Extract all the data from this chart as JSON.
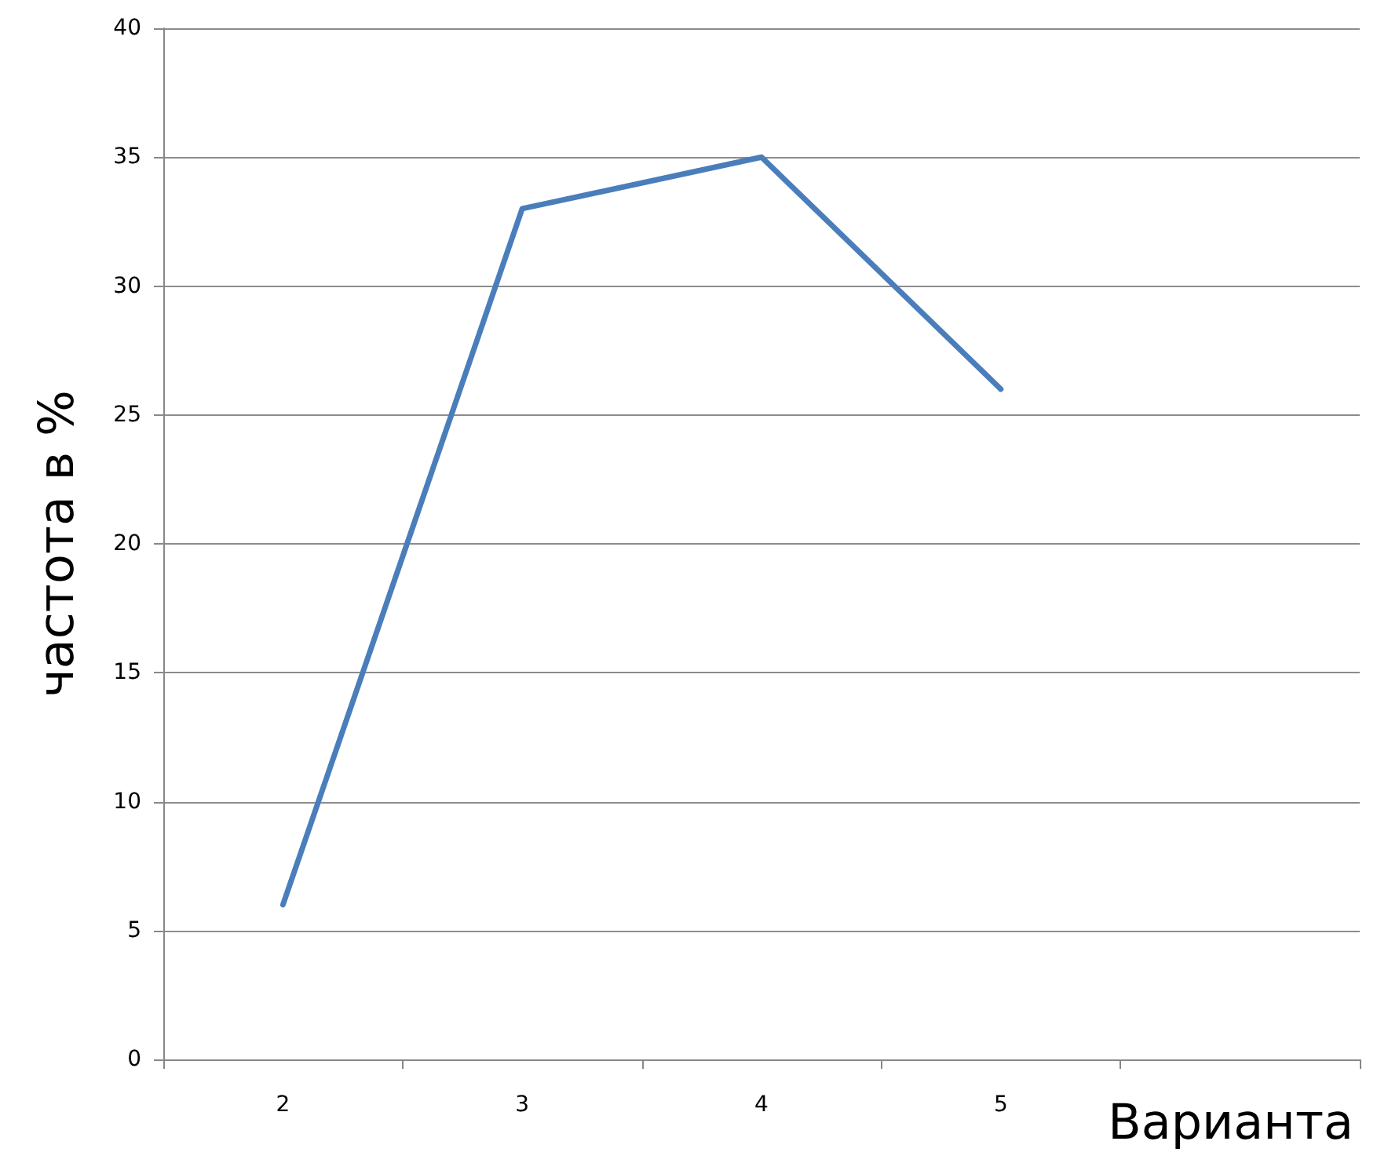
{
  "chart_data": {
    "type": "line",
    "ylabel": "частота в %",
    "xlabel": "Варианта",
    "categories": [
      "2",
      "3",
      "4",
      "5",
      null
    ],
    "series": [
      {
        "color": "#4a7ebb",
        "values": [
          6,
          33,
          35,
          26,
          null
        ]
      }
    ],
    "ylim": [
      0,
      40
    ],
    "yticks": [
      0,
      5,
      10,
      15,
      20,
      25,
      30,
      35,
      40
    ],
    "grid": "y",
    "marker": "none",
    "line_style": "solid"
  }
}
